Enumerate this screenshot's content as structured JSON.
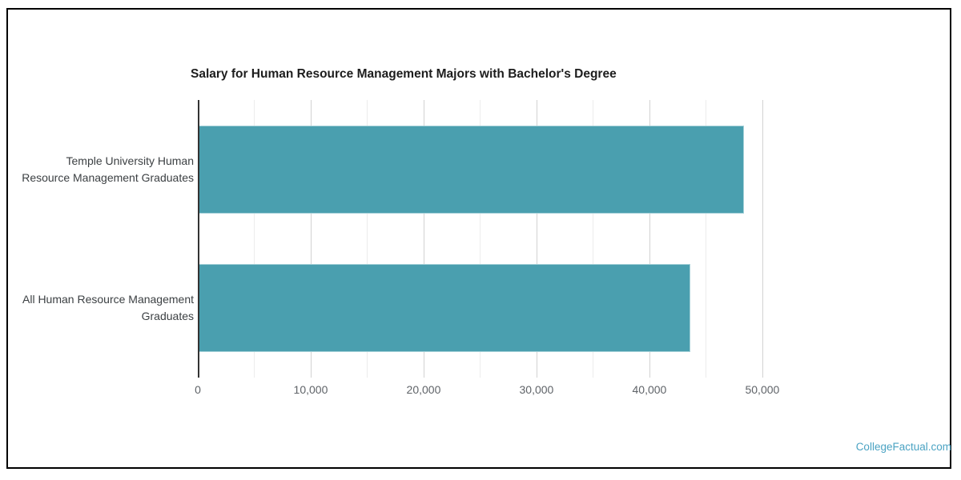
{
  "chart_data": {
    "type": "bar",
    "orientation": "horizontal",
    "title": "Salary for Human Resource Management Majors with Bachelor's Degree",
    "categories": [
      "Temple University Human Resource Management Graduates",
      "All Human Resource Management Graduates"
    ],
    "values": [
      48400,
      43650
    ],
    "rows": [
      {
        "label_lines": [
          "Temple University Human",
          "Resource Management Graduates"
        ],
        "value": 48400
      },
      {
        "label_lines": [
          "All Human Resource Management",
          "Graduates"
        ],
        "value": 43650
      }
    ],
    "xlabel": "",
    "ylabel": "",
    "xlim": [
      0,
      51000
    ],
    "x_ticks": [
      {
        "value": 0,
        "label": "0"
      },
      {
        "value": 10000,
        "label": "10,000"
      },
      {
        "value": 20000,
        "label": "20,000"
      },
      {
        "value": 30000,
        "label": "30,000"
      },
      {
        "value": 40000,
        "label": "40,000"
      },
      {
        "value": 50000,
        "label": "50,000"
      }
    ],
    "gridline_values": [
      5000,
      10000,
      15000,
      20000,
      25000,
      30000,
      35000,
      40000,
      45000,
      50000
    ],
    "major_step": 10000,
    "grid": true,
    "legend": false,
    "bar_color": "#4A9FAF",
    "axis_color": "#333333",
    "major_grid_color": "#d2d2d2",
    "minor_grid_color": "#ececec"
  },
  "watermark": {
    "label": "CollegeFactual.com",
    "color": "#4BA3C3"
  }
}
